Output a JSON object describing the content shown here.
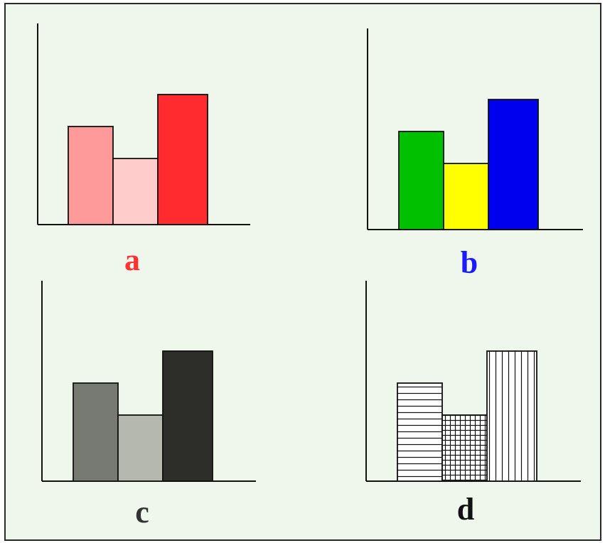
{
  "chart_data": [
    {
      "type": "bar",
      "label": "a",
      "label_color": "#ff3333",
      "values": [
        0.46,
        0.31,
        0.61
      ],
      "colors": [
        "#ff9a9a",
        "#ffcccc",
        "#ff2b2f"
      ],
      "fills": [
        "solid",
        "solid",
        "solid"
      ]
    },
    {
      "type": "bar",
      "label": "b",
      "label_color": "#1a1aff",
      "values": [
        0.46,
        0.31,
        0.61
      ],
      "colors": [
        "#00c000",
        "#ffff00",
        "#0000ee"
      ],
      "fills": [
        "solid",
        "solid",
        "solid"
      ]
    },
    {
      "type": "bar",
      "label": "c",
      "label_color": "#333333",
      "values": [
        0.46,
        0.31,
        0.61
      ],
      "colors": [
        "#777a72",
        "#b4b8ae",
        "#2d2e2a"
      ],
      "fills": [
        "solid",
        "solid",
        "solid"
      ]
    },
    {
      "type": "bar",
      "label": "d",
      "label_color": "#111111",
      "values": [
        0.46,
        0.31,
        0.61
      ],
      "colors": [
        "#ffffff",
        "#ffffff",
        "#ffffff"
      ],
      "fills": [
        "horizontal-lines",
        "grid",
        "vertical-lines"
      ]
    }
  ]
}
